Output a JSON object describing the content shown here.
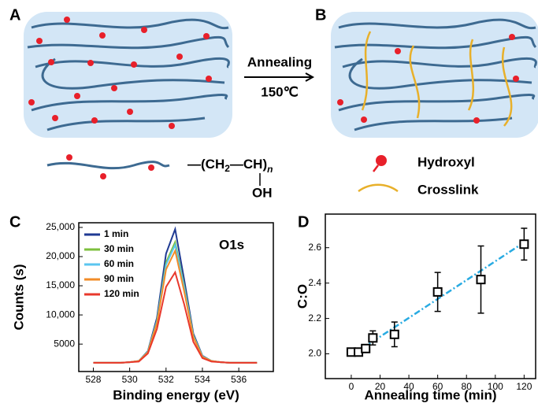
{
  "panels": {
    "a": "A",
    "b": "B",
    "c": "C",
    "d": "D"
  },
  "schematic": {
    "arrow_top": "Annealing",
    "arrow_bottom": "150℃",
    "formula": {
      "left": "—(CH",
      "sub": "2",
      "mid": "—CH)",
      "n": "n",
      "oh": "OH"
    },
    "legend": {
      "hydroxyl": "Hydroxyl",
      "crosslink": "Crosslink"
    }
  },
  "chart_data": [
    {
      "type": "line",
      "xlabel": "Binding energy (eV)",
      "ylabel": "Counts (s)",
      "annotation": "O1s",
      "x": [
        528,
        528.5,
        529,
        529.5,
        530,
        530.5,
        531,
        531.5,
        532,
        532.5,
        533,
        533.5,
        534,
        534.5,
        535,
        535.5,
        536,
        536.5,
        537
      ],
      "xlim": [
        527.2,
        537.9
      ],
      "xticks": [
        528,
        530,
        532,
        534,
        536
      ],
      "ylim": [
        300,
        25800
      ],
      "yticks": [
        5000,
        {
          "value": 10000,
          "label": "10,000"
        },
        {
          "value": 15000,
          "label": "15,000"
        },
        {
          "value": 20000,
          "label": "20,000"
        },
        {
          "value": 25000,
          "label": "25,000"
        }
      ],
      "series": [
        {
          "name": "1 min",
          "color": "#1f3a93",
          "values": [
            1800,
            1800,
            1800,
            1800,
            1900,
            2100,
            3800,
            9500,
            20500,
            24700,
            16000,
            6800,
            3000,
            2100,
            1900,
            1800,
            1800,
            1800,
            1800
          ]
        },
        {
          "name": "30 min",
          "color": "#7dbf3d",
          "values": [
            1800,
            1800,
            1800,
            1800,
            1900,
            2100,
            3700,
            9000,
            19000,
            22500,
            15000,
            6500,
            2900,
            2100,
            1900,
            1800,
            1800,
            1800,
            1800
          ]
        },
        {
          "name": "60 min",
          "color": "#5bc6f0",
          "values": [
            1800,
            1800,
            1800,
            1800,
            1900,
            2100,
            3700,
            8900,
            18600,
            22000,
            14700,
            6400,
            2900,
            2100,
            1900,
            1800,
            1800,
            1800,
            1800
          ]
        },
        {
          "name": "90 min",
          "color": "#f28c28",
          "values": [
            1800,
            1800,
            1800,
            1800,
            1900,
            2100,
            3600,
            8600,
            17800,
            21000,
            14000,
            6200,
            2800,
            2100,
            1900,
            1800,
            1800,
            1800,
            1800
          ]
        },
        {
          "name": "120 min",
          "color": "#e8382c",
          "values": [
            1800,
            1800,
            1800,
            1800,
            1900,
            2000,
            3400,
            7600,
            14800,
            17300,
            11800,
            5400,
            2600,
            2000,
            1900,
            1800,
            1800,
            1800,
            1800
          ]
        }
      ]
    },
    {
      "type": "scatter",
      "xlabel": "Annealing time (min)",
      "ylabel": "C:O",
      "x": [
        0,
        5,
        10,
        15,
        30,
        60,
        90,
        120
      ],
      "values": [
        2.01,
        2.01,
        2.03,
        2.09,
        2.11,
        2.35,
        2.42,
        2.62
      ],
      "errors": [
        0.01,
        0.01,
        0.02,
        0.04,
        0.07,
        0.11,
        0.19,
        0.09
      ],
      "color": "#000000",
      "fit": {
        "x": [
          0,
          120
        ],
        "values": [
          1.99,
          2.63
        ],
        "color": "#29abe2"
      },
      "xlim": [
        -18,
        128
      ],
      "xticks": [
        0,
        20,
        40,
        60,
        80,
        100,
        120
      ],
      "ylim": [
        1.86,
        2.79
      ],
      "yticks": [
        {
          "value": 2.0,
          "label": "2.0"
        },
        {
          "value": 2.2,
          "label": "2.2"
        },
        {
          "value": 2.4,
          "label": "2.4"
        },
        {
          "value": 2.6,
          "label": "2.6"
        }
      ]
    }
  ]
}
